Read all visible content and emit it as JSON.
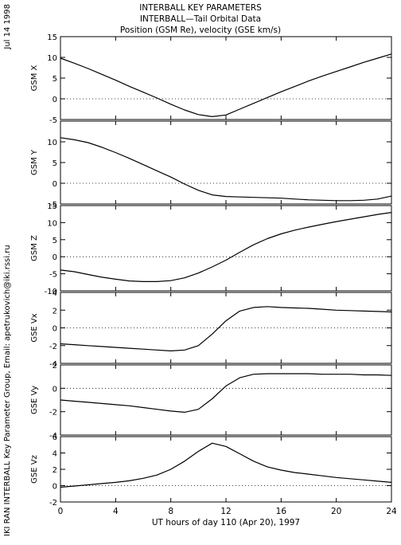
{
  "header": {
    "title_line1": "INTERBALL KEY PARAMETERS",
    "title_line2": "INTERBALL—Tail Orbital Data",
    "title_line3": "Position (GSM Re), velocity (GSE km/s)"
  },
  "side": {
    "date": "Jul 14 1998",
    "credit": "IKI RAN INTERBALL Key Parameter Group, Email: apetrukovich@iki.rssi.ru"
  },
  "chart_data": {
    "type": "line",
    "x_label": "UT hours of day 110 (Apr 20), 1997",
    "x_range": [
      0,
      24
    ],
    "x_ticks": [
      0,
      4,
      8,
      12,
      16,
      20,
      24
    ],
    "x": [
      0,
      1,
      2,
      3,
      4,
      5,
      6,
      7,
      8,
      9,
      10,
      11,
      12,
      13,
      14,
      15,
      16,
      17,
      18,
      19,
      20,
      21,
      22,
      23,
      24
    ],
    "panels": [
      {
        "ylabel": "GSM X",
        "yrange": [
          -5,
          15
        ],
        "yticks": [
          -5,
          0,
          5,
          10,
          15
        ],
        "values": [
          9.8,
          8.6,
          7.3,
          5.9,
          4.5,
          3.0,
          1.6,
          0.2,
          -1.3,
          -2.7,
          -3.8,
          -4.3,
          -3.9,
          -2.5,
          -1.1,
          0.3,
          1.7,
          3.0,
          4.3,
          5.5,
          6.6,
          7.7,
          8.8,
          9.8,
          10.8
        ]
      },
      {
        "ylabel": "GSM Y",
        "yrange": [
          -5,
          15
        ],
        "yticks": [
          -5,
          0,
          5,
          10
        ],
        "values": [
          11.0,
          10.5,
          9.8,
          8.7,
          7.4,
          6.0,
          4.5,
          3.0,
          1.5,
          -0.2,
          -1.7,
          -2.8,
          -3.2,
          -3.3,
          -3.4,
          -3.5,
          -3.6,
          -3.8,
          -4.0,
          -4.1,
          -4.2,
          -4.2,
          -4.1,
          -3.8,
          -3.1
        ]
      },
      {
        "ylabel": "GSM Z",
        "yrange": [
          -10,
          15
        ],
        "yticks": [
          -10,
          -5,
          0,
          5,
          10,
          15
        ],
        "values": [
          -3.9,
          -4.4,
          -5.2,
          -6.0,
          -6.6,
          -7.1,
          -7.3,
          -7.3,
          -7.0,
          -6.2,
          -4.8,
          -3.0,
          -1.0,
          1.3,
          3.5,
          5.3,
          6.7,
          7.8,
          8.7,
          9.5,
          10.3,
          11.0,
          11.7,
          12.4,
          13.0
        ]
      },
      {
        "ylabel": "GSE Vx",
        "yrange": [
          -4,
          4
        ],
        "yticks": [
          -4,
          -2,
          0,
          2,
          4
        ],
        "values": [
          -1.8,
          -1.9,
          -2.0,
          -2.1,
          -2.2,
          -2.3,
          -2.4,
          -2.5,
          -2.6,
          -2.5,
          -2.0,
          -0.7,
          0.8,
          1.9,
          2.3,
          2.4,
          2.3,
          2.25,
          2.2,
          2.1,
          2.0,
          1.95,
          1.9,
          1.85,
          1.8
        ]
      },
      {
        "ylabel": "GSE Vy",
        "yrange": [
          -4,
          2
        ],
        "yticks": [
          -4,
          -2,
          0,
          2
        ],
        "values": [
          -1.0,
          -1.1,
          -1.2,
          -1.3,
          -1.4,
          -1.5,
          -1.65,
          -1.8,
          -1.95,
          -2.05,
          -1.8,
          -0.9,
          0.2,
          0.9,
          1.2,
          1.25,
          1.25,
          1.25,
          1.25,
          1.2,
          1.2,
          1.2,
          1.15,
          1.15,
          1.1
        ]
      },
      {
        "ylabel": "GSE Vz",
        "yrange": [
          -2,
          6
        ],
        "yticks": [
          -2,
          0,
          2,
          4,
          6
        ],
        "values": [
          -0.2,
          -0.05,
          0.1,
          0.25,
          0.4,
          0.6,
          0.9,
          1.3,
          2.0,
          3.0,
          4.2,
          5.2,
          4.8,
          3.9,
          3.0,
          2.3,
          1.9,
          1.6,
          1.4,
          1.2,
          1.0,
          0.85,
          0.7,
          0.55,
          0.4
        ]
      }
    ]
  }
}
